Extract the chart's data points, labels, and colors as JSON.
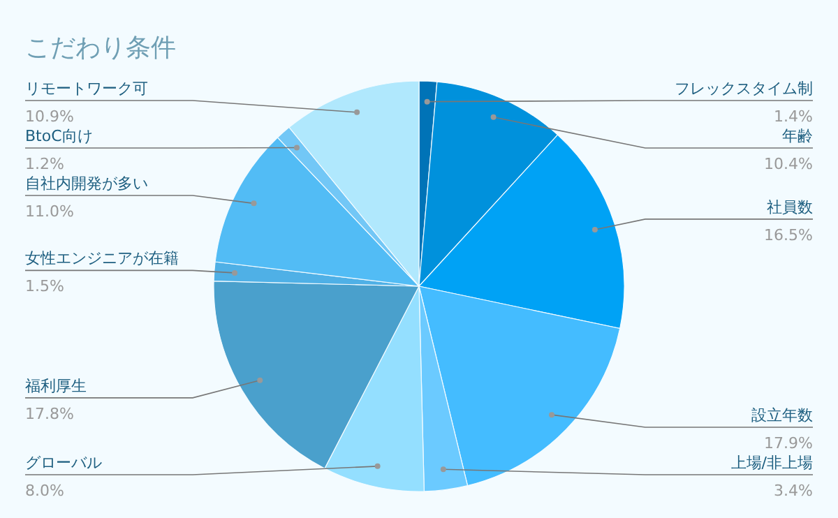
{
  "chart_data": {
    "type": "pie",
    "title": "こだわり条件",
    "categories": [
      "フレックスタイム制",
      "年齢",
      "社員数",
      "設立年数",
      "上場/非上場",
      "グローバル",
      "福利厚生",
      "女性エンジニアが在籍",
      "自社内開発が多い",
      "BtoC向け",
      "リモートワーク可"
    ],
    "values": [
      1.4,
      10.4,
      16.5,
      17.9,
      3.4,
      8.0,
      17.8,
      1.5,
      11.0,
      1.2,
      10.9
    ],
    "value_labels": [
      "1.4%",
      "10.4%",
      "16.5%",
      "17.9%",
      "3.4%",
      "8.0%",
      "17.8%",
      "1.5%",
      "11.0%",
      "1.2%",
      "10.9%"
    ],
    "colors": [
      "#0073b7",
      "#0091dc",
      "#00a2f5",
      "#44bcff",
      "#6bcaff",
      "#94dfff",
      "#4aa0cc",
      "#4fb0e6",
      "#52bcf5",
      "#72c7f6",
      "#b0e8fd"
    ]
  }
}
